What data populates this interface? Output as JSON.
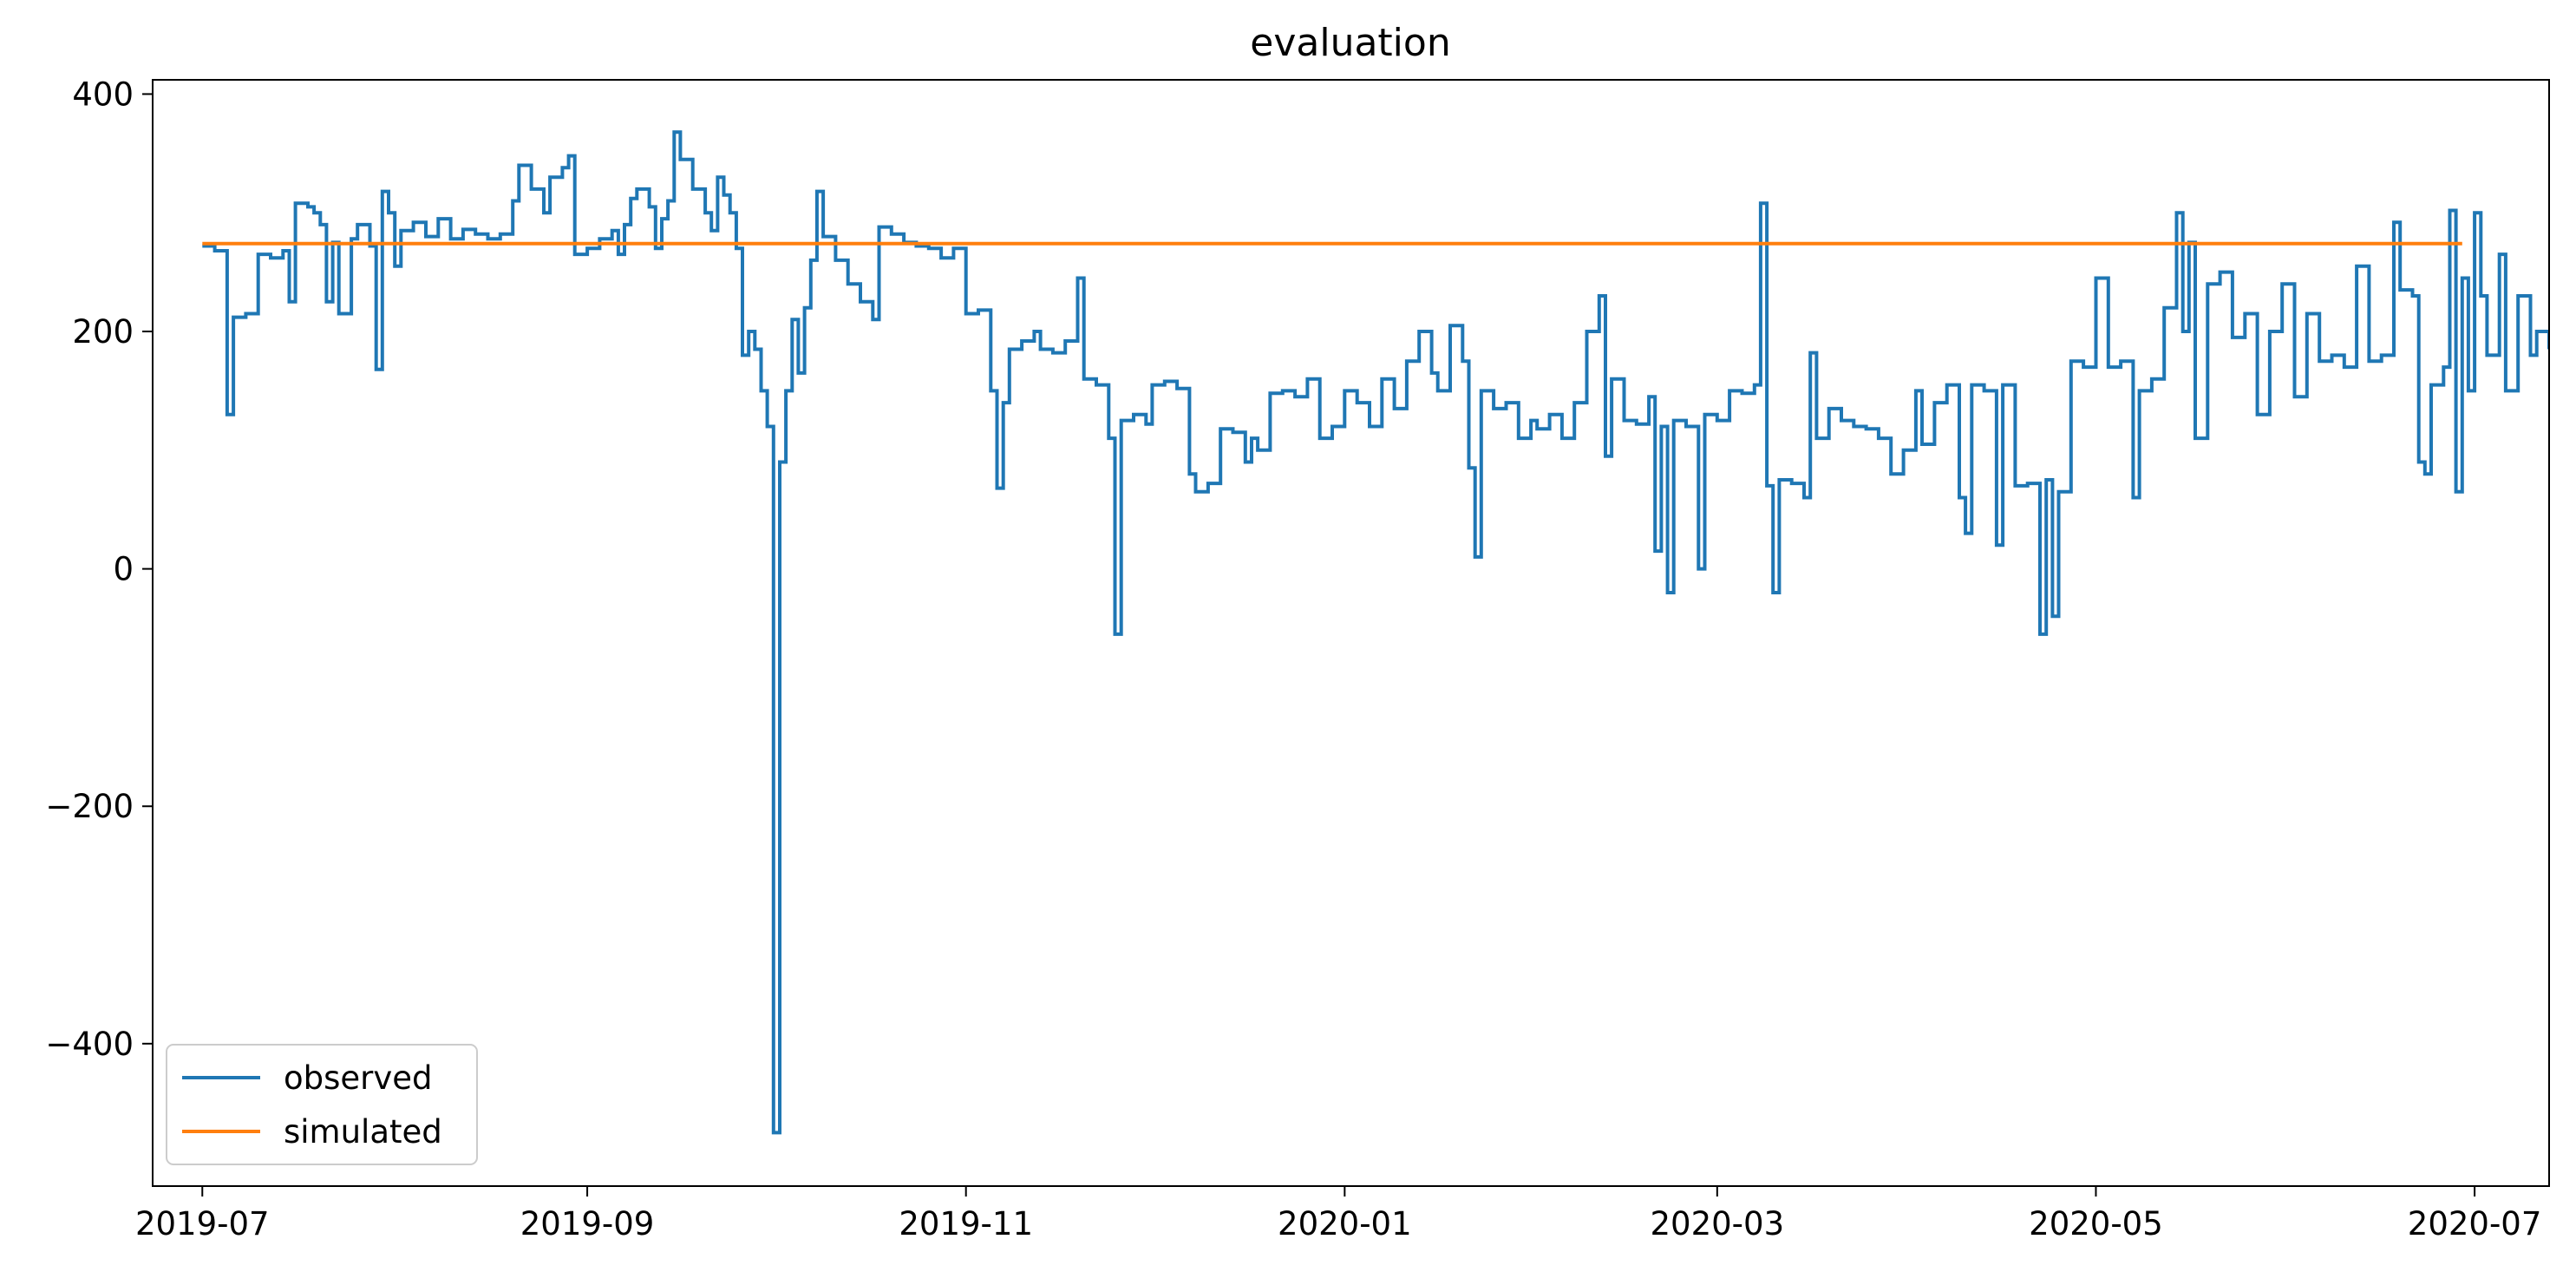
{
  "chart_data": {
    "type": "line",
    "title": "evaluation",
    "xlabel": "",
    "ylabel": "",
    "x_range": [
      "2019-06-23",
      "2020-07-13"
    ],
    "ylim": [
      -520,
      412
    ],
    "x_ticks": [
      {
        "date": "2019-07-01",
        "label": "2019-07"
      },
      {
        "date": "2019-09-01",
        "label": "2019-09"
      },
      {
        "date": "2019-11-01",
        "label": "2019-11"
      },
      {
        "date": "2020-01-01",
        "label": "2020-01"
      },
      {
        "date": "2020-03-01",
        "label": "2020-03"
      },
      {
        "date": "2020-05-01",
        "label": "2020-05"
      },
      {
        "date": "2020-07-01",
        "label": "2020-07"
      }
    ],
    "y_ticks": [
      {
        "value": 400,
        "label": "400"
      },
      {
        "value": 200,
        "label": "200"
      },
      {
        "value": 0,
        "label": "0"
      },
      {
        "value": -200,
        "label": "−200"
      },
      {
        "value": -400,
        "label": "−400"
      }
    ],
    "grid": false,
    "legend_position": "lower-left",
    "series": [
      {
        "name": "observed",
        "color": "#1f77b4",
        "step": true,
        "points": [
          [
            "2019-07-01",
            272
          ],
          [
            "2019-07-03",
            268
          ],
          [
            "2019-07-05",
            130
          ],
          [
            "2019-07-06",
            212
          ],
          [
            "2019-07-08",
            215
          ],
          [
            "2019-07-10",
            265
          ],
          [
            "2019-07-12",
            262
          ],
          [
            "2019-07-14",
            268
          ],
          [
            "2019-07-15",
            225
          ],
          [
            "2019-07-16",
            308
          ],
          [
            "2019-07-18",
            305
          ],
          [
            "2019-07-19",
            300
          ],
          [
            "2019-07-20",
            290
          ],
          [
            "2019-07-21",
            225
          ],
          [
            "2019-07-22",
            275
          ],
          [
            "2019-07-23",
            215
          ],
          [
            "2019-07-25",
            278
          ],
          [
            "2019-07-26",
            290
          ],
          [
            "2019-07-28",
            272
          ],
          [
            "2019-07-29",
            168
          ],
          [
            "2019-07-30",
            318
          ],
          [
            "2019-07-31",
            300
          ],
          [
            "2019-08-01",
            255
          ],
          [
            "2019-08-02",
            285
          ],
          [
            "2019-08-04",
            292
          ],
          [
            "2019-08-06",
            280
          ],
          [
            "2019-08-08",
            295
          ],
          [
            "2019-08-10",
            278
          ],
          [
            "2019-08-12",
            286
          ],
          [
            "2019-08-14",
            282
          ],
          [
            "2019-08-16",
            278
          ],
          [
            "2019-08-18",
            282
          ],
          [
            "2019-08-20",
            310
          ],
          [
            "2019-08-21",
            340
          ],
          [
            "2019-08-23",
            320
          ],
          [
            "2019-08-25",
            300
          ],
          [
            "2019-08-26",
            330
          ],
          [
            "2019-08-28",
            338
          ],
          [
            "2019-08-29",
            348
          ],
          [
            "2019-08-30",
            265
          ],
          [
            "2019-09-01",
            270
          ],
          [
            "2019-09-03",
            278
          ],
          [
            "2019-09-05",
            285
          ],
          [
            "2019-09-06",
            265
          ],
          [
            "2019-09-07",
            290
          ],
          [
            "2019-09-08",
            312
          ],
          [
            "2019-09-09",
            320
          ],
          [
            "2019-09-11",
            305
          ],
          [
            "2019-09-12",
            270
          ],
          [
            "2019-09-13",
            295
          ],
          [
            "2019-09-14",
            310
          ],
          [
            "2019-09-15",
            368
          ],
          [
            "2019-09-16",
            345
          ],
          [
            "2019-09-18",
            320
          ],
          [
            "2019-09-20",
            300
          ],
          [
            "2019-09-21",
            285
          ],
          [
            "2019-09-22",
            330
          ],
          [
            "2019-09-23",
            315
          ],
          [
            "2019-09-24",
            300
          ],
          [
            "2019-09-25",
            270
          ],
          [
            "2019-09-26",
            180
          ],
          [
            "2019-09-27",
            200
          ],
          [
            "2019-09-28",
            185
          ],
          [
            "2019-09-29",
            150
          ],
          [
            "2019-09-30",
            120
          ],
          [
            "2019-10-01",
            -475
          ],
          [
            "2019-10-02",
            90
          ],
          [
            "2019-10-03",
            150
          ],
          [
            "2019-10-04",
            210
          ],
          [
            "2019-10-05",
            165
          ],
          [
            "2019-10-06",
            220
          ],
          [
            "2019-10-07",
            260
          ],
          [
            "2019-10-08",
            318
          ],
          [
            "2019-10-09",
            280
          ],
          [
            "2019-10-11",
            260
          ],
          [
            "2019-10-13",
            240
          ],
          [
            "2019-10-15",
            225
          ],
          [
            "2019-10-17",
            210
          ],
          [
            "2019-10-18",
            288
          ],
          [
            "2019-10-20",
            282
          ],
          [
            "2019-10-22",
            275
          ],
          [
            "2019-10-24",
            272
          ],
          [
            "2019-10-26",
            270
          ],
          [
            "2019-10-28",
            262
          ],
          [
            "2019-10-30",
            270
          ],
          [
            "2019-11-01",
            215
          ],
          [
            "2019-11-03",
            218
          ],
          [
            "2019-11-05",
            150
          ],
          [
            "2019-11-06",
            68
          ],
          [
            "2019-11-07",
            140
          ],
          [
            "2019-11-08",
            185
          ],
          [
            "2019-11-10",
            192
          ],
          [
            "2019-11-12",
            200
          ],
          [
            "2019-11-13",
            185
          ],
          [
            "2019-11-15",
            182
          ],
          [
            "2019-11-17",
            192
          ],
          [
            "2019-11-19",
            245
          ],
          [
            "2019-11-20",
            160
          ],
          [
            "2019-11-22",
            155
          ],
          [
            "2019-11-24",
            110
          ],
          [
            "2019-11-25",
            -55
          ],
          [
            "2019-11-26",
            125
          ],
          [
            "2019-11-28",
            130
          ],
          [
            "2019-11-30",
            122
          ],
          [
            "2019-12-01",
            155
          ],
          [
            "2019-12-03",
            158
          ],
          [
            "2019-12-05",
            152
          ],
          [
            "2019-12-07",
            80
          ],
          [
            "2019-12-08",
            65
          ],
          [
            "2019-12-10",
            72
          ],
          [
            "2019-12-12",
            118
          ],
          [
            "2019-12-14",
            115
          ],
          [
            "2019-12-16",
            90
          ],
          [
            "2019-12-17",
            110
          ],
          [
            "2019-12-18",
            100
          ],
          [
            "2019-12-20",
            148
          ],
          [
            "2019-12-22",
            150
          ],
          [
            "2019-12-24",
            145
          ],
          [
            "2019-12-26",
            160
          ],
          [
            "2019-12-28",
            110
          ],
          [
            "2019-12-30",
            120
          ],
          [
            "2020-01-01",
            150
          ],
          [
            "2020-01-03",
            140
          ],
          [
            "2020-01-05",
            120
          ],
          [
            "2020-01-07",
            160
          ],
          [
            "2020-01-09",
            135
          ],
          [
            "2020-01-11",
            175
          ],
          [
            "2020-01-13",
            200
          ],
          [
            "2020-01-15",
            165
          ],
          [
            "2020-01-16",
            150
          ],
          [
            "2020-01-18",
            205
          ],
          [
            "2020-01-20",
            175
          ],
          [
            "2020-01-21",
            85
          ],
          [
            "2020-01-22",
            10
          ],
          [
            "2020-01-23",
            150
          ],
          [
            "2020-01-25",
            135
          ],
          [
            "2020-01-27",
            140
          ],
          [
            "2020-01-29",
            110
          ],
          [
            "2020-01-31",
            125
          ],
          [
            "2020-02-01",
            118
          ],
          [
            "2020-02-03",
            130
          ],
          [
            "2020-02-05",
            110
          ],
          [
            "2020-02-07",
            140
          ],
          [
            "2020-02-09",
            200
          ],
          [
            "2020-02-11",
            230
          ],
          [
            "2020-02-12",
            95
          ],
          [
            "2020-02-13",
            160
          ],
          [
            "2020-02-15",
            125
          ],
          [
            "2020-02-17",
            122
          ],
          [
            "2020-02-19",
            145
          ],
          [
            "2020-02-20",
            15
          ],
          [
            "2020-02-21",
            120
          ],
          [
            "2020-02-22",
            -20
          ],
          [
            "2020-02-23",
            125
          ],
          [
            "2020-02-25",
            120
          ],
          [
            "2020-02-27",
            0
          ],
          [
            "2020-02-28",
            130
          ],
          [
            "2020-03-01",
            125
          ],
          [
            "2020-03-03",
            150
          ],
          [
            "2020-03-05",
            148
          ],
          [
            "2020-03-07",
            155
          ],
          [
            "2020-03-08",
            308
          ],
          [
            "2020-03-09",
            70
          ],
          [
            "2020-03-10",
            -20
          ],
          [
            "2020-03-11",
            75
          ],
          [
            "2020-03-13",
            72
          ],
          [
            "2020-03-15",
            60
          ],
          [
            "2020-03-16",
            182
          ],
          [
            "2020-03-17",
            110
          ],
          [
            "2020-03-19",
            135
          ],
          [
            "2020-03-21",
            125
          ],
          [
            "2020-03-23",
            120
          ],
          [
            "2020-03-25",
            118
          ],
          [
            "2020-03-27",
            110
          ],
          [
            "2020-03-29",
            80
          ],
          [
            "2020-03-31",
            100
          ],
          [
            "2020-04-02",
            150
          ],
          [
            "2020-04-03",
            105
          ],
          [
            "2020-04-05",
            140
          ],
          [
            "2020-04-07",
            155
          ],
          [
            "2020-04-09",
            60
          ],
          [
            "2020-04-10",
            30
          ],
          [
            "2020-04-11",
            155
          ],
          [
            "2020-04-13",
            150
          ],
          [
            "2020-04-15",
            20
          ],
          [
            "2020-04-16",
            155
          ],
          [
            "2020-04-18",
            70
          ],
          [
            "2020-04-20",
            72
          ],
          [
            "2020-04-22",
            -55
          ],
          [
            "2020-04-23",
            75
          ],
          [
            "2020-04-24",
            -40
          ],
          [
            "2020-04-25",
            65
          ],
          [
            "2020-04-27",
            175
          ],
          [
            "2020-04-29",
            170
          ],
          [
            "2020-05-01",
            245
          ],
          [
            "2020-05-03",
            170
          ],
          [
            "2020-05-05",
            175
          ],
          [
            "2020-05-07",
            60
          ],
          [
            "2020-05-08",
            150
          ],
          [
            "2020-05-10",
            160
          ],
          [
            "2020-05-12",
            220
          ],
          [
            "2020-05-14",
            300
          ],
          [
            "2020-05-15",
            200
          ],
          [
            "2020-05-16",
            275
          ],
          [
            "2020-05-17",
            110
          ],
          [
            "2020-05-19",
            240
          ],
          [
            "2020-05-21",
            250
          ],
          [
            "2020-05-23",
            195
          ],
          [
            "2020-05-25",
            215
          ],
          [
            "2020-05-27",
            130
          ],
          [
            "2020-05-29",
            200
          ],
          [
            "2020-05-31",
            240
          ],
          [
            "2020-06-02",
            145
          ],
          [
            "2020-06-04",
            215
          ],
          [
            "2020-06-06",
            175
          ],
          [
            "2020-06-08",
            180
          ],
          [
            "2020-06-10",
            170
          ],
          [
            "2020-06-12",
            255
          ],
          [
            "2020-06-14",
            175
          ],
          [
            "2020-06-16",
            180
          ],
          [
            "2020-06-18",
            292
          ],
          [
            "2020-06-19",
            235
          ],
          [
            "2020-06-21",
            230
          ],
          [
            "2020-06-22",
            90
          ],
          [
            "2020-06-23",
            80
          ],
          [
            "2020-06-24",
            155
          ],
          [
            "2020-06-26",
            170
          ],
          [
            "2020-06-27",
            302
          ],
          [
            "2020-06-28",
            65
          ],
          [
            "2020-06-29",
            245
          ],
          [
            "2020-06-30",
            150
          ],
          [
            "2020-07-01",
            300
          ],
          [
            "2020-07-02",
            230
          ],
          [
            "2020-07-03",
            180
          ],
          [
            "2020-07-05",
            265
          ],
          [
            "2020-07-06",
            150
          ],
          [
            "2020-07-08",
            230
          ],
          [
            "2020-07-10",
            180
          ],
          [
            "2020-07-11",
            200
          ],
          [
            "2020-07-13",
            185
          ]
        ]
      },
      {
        "name": "simulated",
        "color": "#ff7f0e",
        "step": false,
        "points": [
          [
            "2019-07-01",
            274
          ],
          [
            "2020-06-29",
            274
          ]
        ]
      }
    ]
  }
}
